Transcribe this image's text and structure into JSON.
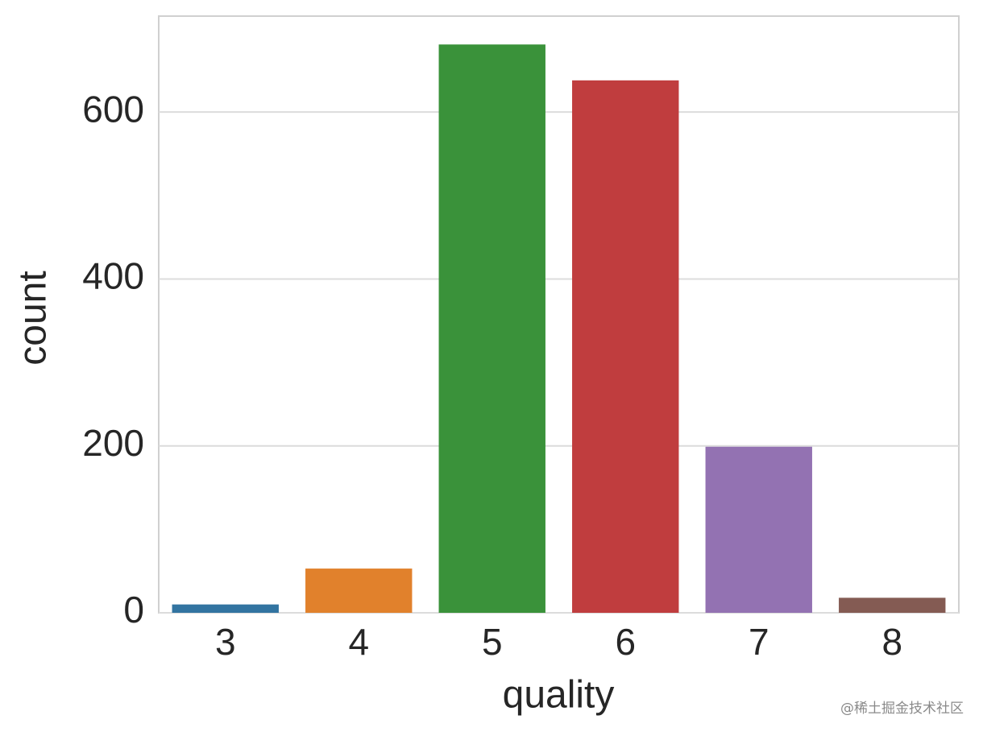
{
  "chart_data": {
    "type": "bar",
    "xlabel": "quality",
    "ylabel": "count",
    "categories": [
      "3",
      "4",
      "5",
      "6",
      "7",
      "8"
    ],
    "values": [
      10,
      53,
      681,
      638,
      199,
      18
    ],
    "colors": [
      "#3274a1",
      "#e1812c",
      "#3a923a",
      "#c03d3e",
      "#9372b2",
      "#845b53"
    ],
    "ylim": [
      0,
      715
    ],
    "yticks": [
      0,
      200,
      400,
      600
    ],
    "grid": true
  },
  "watermark": "@稀土掘金技术社区"
}
